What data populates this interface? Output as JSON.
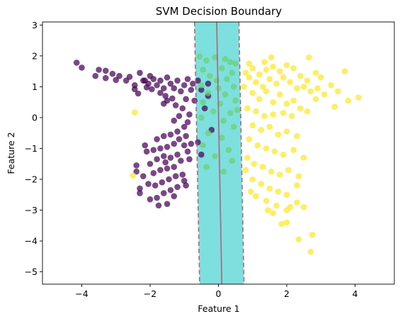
{
  "chart_data": {
    "type": "scatter",
    "title": "SVM Decision Boundary",
    "xlabel": "Feature 1",
    "ylabel": "Feature 2",
    "xlim": [
      -5.15,
      5.15
    ],
    "ylim": [
      -5.4,
      3.1
    ],
    "xticks": [
      -4,
      -2,
      0,
      2,
      4
    ],
    "xtick_labels": [
      "−4",
      "−2",
      "0",
      "2",
      "4"
    ],
    "yticks": [
      -5,
      -4,
      -3,
      -2,
      -1,
      0,
      1,
      2,
      3
    ],
    "ytick_labels": [
      "−5",
      "−4",
      "−3",
      "−2",
      "−1",
      "0",
      "1",
      "2",
      "3"
    ],
    "grid": false,
    "legend": "none",
    "colors": {
      "class_a": "#440154",
      "class_b": "#fde725",
      "overlap": "#6ccf70",
      "margin_fill": "#7de0de",
      "boundary_line": "#b5546b",
      "frame": "#000000"
    },
    "decision_boundary": {
      "x_at_top": -0.05,
      "x_at_bottom": 0.1,
      "margin_half_width": 0.65
    },
    "series": [
      {
        "class": "purple",
        "color": "#440154",
        "points": [
          [
            -4.15,
            1.78
          ],
          [
            -4.0,
            1.62
          ],
          [
            -3.5,
            1.55
          ],
          [
            -3.3,
            1.52
          ],
          [
            -3.1,
            1.42
          ],
          [
            -2.9,
            1.35
          ],
          [
            -3.6,
            1.35
          ],
          [
            -3.3,
            1.28
          ],
          [
            -3.0,
            1.22
          ],
          [
            -2.7,
            1.2
          ],
          [
            -2.6,
            1.32
          ],
          [
            -2.45,
            1.05
          ],
          [
            -2.3,
            1.45
          ],
          [
            -2.2,
            1.2
          ],
          [
            -2.05,
            1.1
          ],
          [
            -2.0,
            1.35
          ],
          [
            -1.9,
            1.25
          ],
          [
            -1.8,
            1.05
          ],
          [
            -1.7,
            1.2
          ],
          [
            -1.6,
            0.95
          ],
          [
            -1.5,
            1.3
          ],
          [
            -1.4,
            1.1
          ],
          [
            -1.3,
            0.95
          ],
          [
            -1.2,
            1.2
          ],
          [
            -1.1,
            0.85
          ],
          [
            -1.0,
            1.05
          ],
          [
            -0.9,
            1.25
          ],
          [
            -0.8,
            0.9
          ],
          [
            -1.7,
            0.8
          ],
          [
            -1.95,
            0.92
          ],
          [
            -2.1,
            0.98
          ],
          [
            -1.55,
            0.7
          ],
          [
            -1.35,
            0.62
          ],
          [
            -1.25,
            0.4
          ],
          [
            -1.6,
            0.45
          ],
          [
            -0.95,
            0.6
          ],
          [
            -1.05,
            0.3
          ],
          [
            -0.85,
            0.1
          ],
          [
            -1.15,
            0.05
          ],
          [
            -1.3,
            -0.1
          ],
          [
            -0.9,
            -0.15
          ],
          [
            -1.5,
            0.55
          ],
          [
            -2.45,
            0.92
          ],
          [
            -2.15,
            1.2
          ],
          [
            -0.75,
            1.1
          ],
          [
            -0.7,
            0.55
          ],
          [
            -2.35,
            0.78
          ],
          [
            -1.0,
            -0.3
          ],
          [
            -1.2,
            -0.45
          ],
          [
            -0.95,
            -0.6
          ],
          [
            -1.4,
            -0.55
          ],
          [
            -1.6,
            -0.6
          ],
          [
            -1.8,
            -0.7
          ],
          [
            -1.0,
            -0.9
          ],
          [
            -1.3,
            -0.85
          ],
          [
            -1.5,
            -0.95
          ],
          [
            -1.7,
            -1.0
          ],
          [
            -1.9,
            -1.05
          ],
          [
            -2.1,
            -1.1
          ],
          [
            -1.2,
            -1.2
          ],
          [
            -1.4,
            -1.3
          ],
          [
            -1.6,
            -1.25
          ],
          [
            -1.8,
            -1.35
          ],
          [
            -2.0,
            -1.5
          ],
          [
            -1.1,
            -1.4
          ],
          [
            -0.9,
            -1.1
          ],
          [
            -1.3,
            -1.6
          ],
          [
            -1.5,
            -1.65
          ],
          [
            -1.7,
            -1.7
          ],
          [
            -1.9,
            -1.8
          ],
          [
            -2.2,
            -1.9
          ],
          [
            -2.4,
            -1.75
          ],
          [
            -1.05,
            -1.85
          ],
          [
            -1.25,
            -1.9
          ],
          [
            -1.45,
            -2.0
          ],
          [
            -1.65,
            -2.1
          ],
          [
            -1.85,
            -2.2
          ],
          [
            -2.05,
            -2.15
          ],
          [
            -2.3,
            -2.3
          ],
          [
            -1.0,
            -2.05
          ],
          [
            -1.2,
            -2.25
          ],
          [
            -1.4,
            -2.35
          ],
          [
            -1.6,
            -2.45
          ],
          [
            -1.8,
            -2.6
          ],
          [
            -2.0,
            -2.65
          ],
          [
            -1.5,
            -2.8
          ],
          [
            -1.3,
            -2.55
          ],
          [
            -0.95,
            -2.2
          ],
          [
            -2.3,
            -2.45
          ],
          [
            -1.15,
            -0.7
          ],
          [
            -0.85,
            -1.35
          ],
          [
            -0.8,
            -0.85
          ],
          [
            -2.4,
            -1.55
          ],
          [
            -1.75,
            -2.85
          ],
          [
            -1.55,
            -1.45
          ],
          [
            -2.15,
            -0.9
          ],
          [
            -0.6,
            1.2
          ],
          [
            -0.5,
            0.9
          ],
          [
            -0.3,
            1.1
          ],
          [
            -0.4,
            0.3
          ],
          [
            -0.2,
            -0.4
          ],
          [
            -0.6,
            -0.8
          ],
          [
            -0.3,
            0.7
          ],
          [
            -0.5,
            -1.2
          ]
        ]
      },
      {
        "class": "yellow",
        "color": "#fde725",
        "points": [
          [
            1.55,
            1.95
          ],
          [
            2.65,
            1.95
          ],
          [
            3.7,
            1.5
          ],
          [
            4.1,
            0.65
          ],
          [
            3.8,
            0.55
          ],
          [
            3.5,
            0.85
          ],
          [
            3.3,
            1.05
          ],
          [
            3.1,
            0.75
          ],
          [
            2.85,
            0.6
          ],
          [
            2.6,
            1.2
          ],
          [
            2.4,
            1.35
          ],
          [
            2.2,
            1.6
          ],
          [
            2.0,
            1.7
          ],
          [
            1.8,
            1.5
          ],
          [
            1.6,
            1.65
          ],
          [
            1.4,
            1.55
          ],
          [
            1.2,
            1.4
          ],
          [
            1.0,
            1.6
          ],
          [
            0.9,
            1.3
          ],
          [
            0.8,
            1.45
          ],
          [
            1.1,
            1.15
          ],
          [
            1.3,
            1.0
          ],
          [
            1.5,
            1.25
          ],
          [
            1.7,
            1.1
          ],
          [
            1.9,
            1.3
          ],
          [
            2.1,
            1.15
          ],
          [
            2.3,
            0.95
          ],
          [
            2.5,
            1.0
          ],
          [
            2.7,
            0.85
          ],
          [
            2.9,
            0.95
          ],
          [
            3.4,
            0.35
          ],
          [
            1.0,
            0.8
          ],
          [
            1.2,
            0.6
          ],
          [
            1.4,
            0.85
          ],
          [
            1.6,
            0.5
          ],
          [
            1.8,
            0.75
          ],
          [
            2.0,
            0.45
          ],
          [
            2.2,
            0.55
          ],
          [
            2.4,
            0.3
          ],
          [
            0.85,
            0.3
          ],
          [
            1.1,
            0.2
          ],
          [
            1.35,
            0.05
          ],
          [
            1.6,
            0.1
          ],
          [
            1.9,
            0.15
          ],
          [
            2.15,
            0.05
          ],
          [
            1.0,
            -0.25
          ],
          [
            1.25,
            -0.4
          ],
          [
            1.5,
            -0.3
          ],
          [
            1.75,
            -0.55
          ],
          [
            2.0,
            -0.45
          ],
          [
            2.3,
            -0.6
          ],
          [
            0.9,
            -0.7
          ],
          [
            1.15,
            -0.9
          ],
          [
            1.4,
            -1.0
          ],
          [
            1.65,
            -1.1
          ],
          [
            1.9,
            -1.2
          ],
          [
            2.2,
            -1.05
          ],
          [
            2.5,
            -1.3
          ],
          [
            0.85,
            -1.3
          ],
          [
            1.05,
            -1.5
          ],
          [
            1.3,
            -1.6
          ],
          [
            1.55,
            -1.75
          ],
          [
            1.8,
            -1.85
          ],
          [
            2.05,
            -1.7
          ],
          [
            2.35,
            -1.9
          ],
          [
            1.0,
            -2.0
          ],
          [
            1.25,
            -2.15
          ],
          [
            1.5,
            -2.3
          ],
          [
            1.75,
            -2.4
          ],
          [
            2.0,
            -2.5
          ],
          [
            2.3,
            -2.2
          ],
          [
            1.1,
            -2.55
          ],
          [
            1.4,
            -2.7
          ],
          [
            1.7,
            -2.85
          ],
          [
            2.0,
            -3.0
          ],
          [
            2.3,
            -2.75
          ],
          [
            1.6,
            -3.1
          ],
          [
            1.85,
            -3.45
          ],
          [
            2.0,
            -3.4
          ],
          [
            2.75,
            -3.8
          ],
          [
            2.35,
            -3.95
          ],
          [
            2.7,
            -4.35
          ],
          [
            2.5,
            -2.9
          ],
          [
            0.95,
            -2.4
          ],
          [
            -2.45,
            0.17
          ],
          [
            -2.5,
            -1.88
          ],
          [
            0.75,
            1.0
          ],
          [
            0.8,
            -1.7
          ],
          [
            2.6,
            0.2
          ],
          [
            3.0,
            1.3
          ],
          [
            2.85,
            1.45
          ],
          [
            1.45,
            -3.0
          ],
          [
            2.1,
            -2.9
          ],
          [
            0.9,
            1.75
          ],
          [
            1.35,
            1.8
          ]
        ]
      },
      {
        "class": "overlap",
        "color": "#6ccf70",
        "points": [
          [
            -0.55,
            1.98
          ],
          [
            -0.35,
            1.85
          ],
          [
            -0.1,
            1.95
          ],
          [
            0.2,
            1.9
          ],
          [
            0.5,
            1.75
          ],
          [
            -0.45,
            1.55
          ],
          [
            0.1,
            1.6
          ],
          [
            0.4,
            1.45
          ],
          [
            -0.25,
            1.35
          ],
          [
            0.25,
            1.25
          ],
          [
            -0.5,
            1.05
          ],
          [
            0.0,
            0.95
          ],
          [
            0.45,
            1.0
          ],
          [
            -0.3,
            0.8
          ],
          [
            0.2,
            0.75
          ],
          [
            0.5,
            0.55
          ],
          [
            -0.45,
            0.5
          ],
          [
            0.05,
            0.45
          ],
          [
            -0.15,
            0.2
          ],
          [
            0.35,
            0.15
          ],
          [
            -0.5,
            0.0
          ],
          [
            0.15,
            -0.1
          ],
          [
            0.45,
            -0.3
          ],
          [
            -0.3,
            -0.5
          ],
          [
            0.1,
            -0.65
          ],
          [
            -0.45,
            -0.9
          ],
          [
            0.3,
            -1.05
          ],
          [
            -0.1,
            -1.25
          ],
          [
            0.4,
            -1.4
          ],
          [
            -0.35,
            -1.6
          ],
          [
            0.15,
            -1.75
          ],
          [
            0.55,
            0.25
          ],
          [
            -0.05,
            1.2
          ],
          [
            0.35,
            1.8
          ]
        ]
      }
    ]
  }
}
